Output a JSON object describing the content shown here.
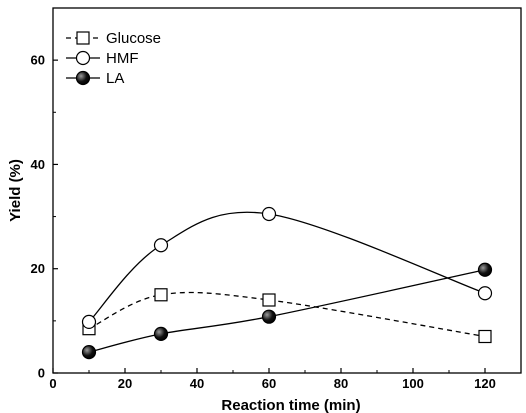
{
  "chart_data": {
    "type": "line",
    "xlabel": "Reaction time (min)",
    "ylabel": "Yield (%)",
    "xlim": [
      0,
      130
    ],
    "ylim": [
      0,
      70
    ],
    "xticks": [
      0,
      20,
      40,
      60,
      80,
      100,
      120
    ],
    "yticks": [
      0,
      20,
      40,
      60
    ],
    "grid": false,
    "legend_position": "top-left",
    "series": [
      {
        "name": "Glucose",
        "marker": "open-square",
        "line_style": "dashed",
        "color": "#000000",
        "x": [
          10,
          30,
          60,
          120
        ],
        "y": [
          8.5,
          15,
          14,
          7
        ]
      },
      {
        "name": "HMF",
        "marker": "open-circle",
        "line_style": "solid",
        "color": "#000000",
        "x": [
          10,
          30,
          60,
          120
        ],
        "y": [
          9.8,
          24.5,
          30.5,
          15.3
        ]
      },
      {
        "name": "LA",
        "marker": "filled-circle",
        "line_style": "solid",
        "color": "#000000",
        "x": [
          10,
          30,
          60,
          120
        ],
        "y": [
          4,
          7.5,
          10.8,
          19.8
        ]
      }
    ]
  }
}
